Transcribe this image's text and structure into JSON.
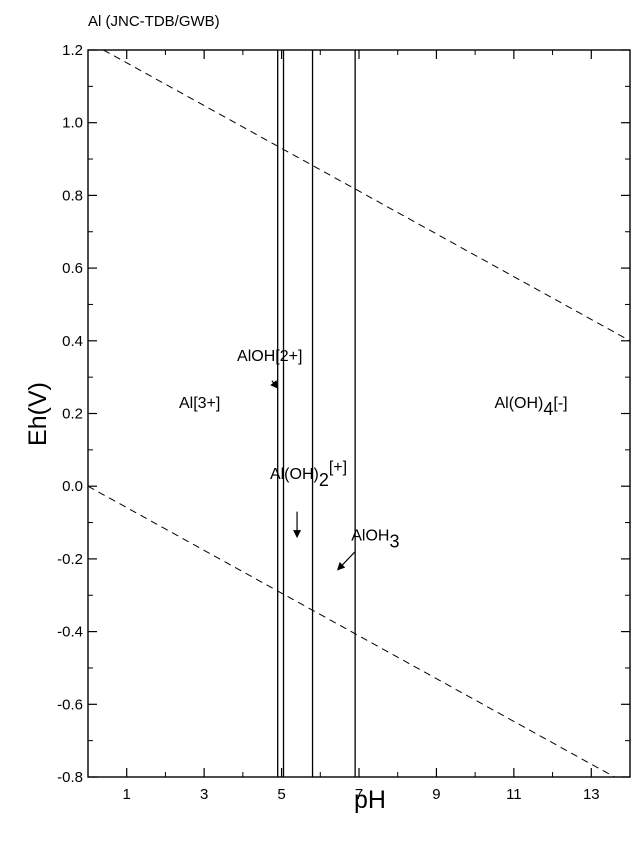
{
  "chart_data": {
    "type": "line",
    "title": "Al (JNC-TDB/GWB)",
    "xlabel": "pH",
    "ylabel": "Eh(V)",
    "xlim": [
      0,
      14
    ],
    "ylim": [
      -0.8,
      1.2
    ],
    "x_ticks": [
      1,
      3,
      5,
      7,
      9,
      11,
      13
    ],
    "x_tick_labels": [
      "1",
      "3",
      "5",
      "7",
      "9",
      "11",
      "13"
    ],
    "y_ticks": [
      -0.8,
      -0.6,
      -0.4,
      -0.2,
      0.0,
      0.2,
      0.4,
      0.6,
      0.8,
      1.0,
      1.2
    ],
    "y_tick_labels": [
      "-0.8",
      "-0.6",
      "-0.4",
      "-0.2",
      "0.0",
      "0.2",
      "0.4",
      "0.6",
      "0.8",
      "1.0",
      "1.2"
    ],
    "grid": false,
    "boundaries": [
      {
        "ph": 4.9
      },
      {
        "ph": 5.05
      },
      {
        "ph": 5.8
      },
      {
        "ph": 6.9
      }
    ],
    "water_lines": [
      {
        "style": "dashed",
        "points": [
          [
            0.4,
            1.2
          ],
          [
            14.0,
            0.4
          ]
        ]
      },
      {
        "style": "dashed",
        "points": [
          [
            0.0,
            0.0
          ],
          [
            13.6,
            -0.8
          ]
        ]
      }
    ],
    "labels": [
      {
        "text": "Al[3+]",
        "x": 2.35,
        "y": 0.215
      },
      {
        "text": "AlOH[2+]",
        "x": 3.85,
        "y": 0.345
      },
      {
        "text": "Al(OH)",
        "sub": "2",
        "sup": "[+]",
        "x": 4.7,
        "y": 0.02
      },
      {
        "text": "AlOH",
        "sub": "3",
        "x": 6.8,
        "y": -0.15
      },
      {
        "text": "Al(OH)",
        "sub": "4",
        "suffix": "[-]",
        "x": 10.5,
        "y": 0.215
      }
    ],
    "arrows": [
      {
        "from": [
          4.75,
          0.29
        ],
        "to": [
          4.9,
          0.27
        ]
      },
      {
        "from": [
          5.4,
          -0.07
        ],
        "to": [
          5.4,
          -0.14
        ]
      },
      {
        "from": [
          6.9,
          -0.18
        ],
        "to": [
          6.45,
          -0.23
        ]
      }
    ]
  }
}
